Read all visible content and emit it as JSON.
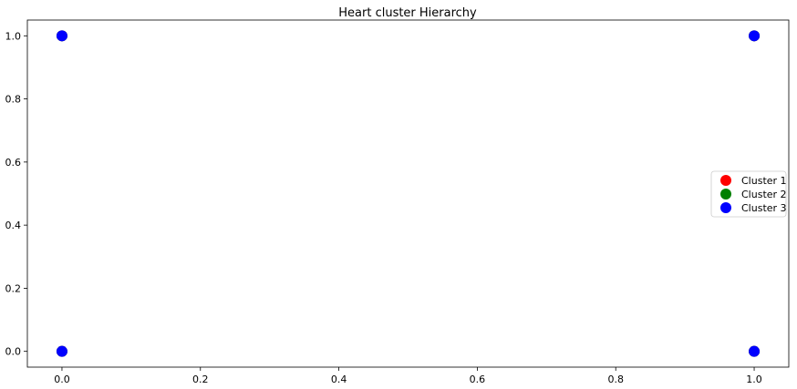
{
  "chart_data": {
    "type": "scatter",
    "title": "Heart cluster Hierarchy",
    "xlabel": "",
    "ylabel": "",
    "xlim": [
      -0.05,
      1.05
    ],
    "ylim": [
      -0.05,
      1.05
    ],
    "xticks": [
      0.0,
      0.2,
      0.4,
      0.6,
      0.8,
      1.0
    ],
    "yticks": [
      0.0,
      0.2,
      0.4,
      0.6,
      0.8,
      1.0
    ],
    "xtick_labels": [
      "0.0",
      "0.2",
      "0.4",
      "0.6",
      "0.8",
      "1.0"
    ],
    "ytick_labels": [
      "0.0",
      "0.2",
      "0.4",
      "0.6",
      "0.8",
      "1.0"
    ],
    "grid": false,
    "legend_position": "center-right",
    "series": [
      {
        "name": "Cluster 1",
        "color": "#ff0000",
        "points": [
          [
            0,
            0
          ],
          [
            0,
            1
          ],
          [
            1,
            0
          ],
          [
            1,
            1
          ]
        ]
      },
      {
        "name": "Cluster 2",
        "color": "#008000",
        "points": [
          [
            0,
            0
          ],
          [
            0,
            1
          ],
          [
            1,
            0
          ],
          [
            1,
            1
          ]
        ]
      },
      {
        "name": "Cluster 3",
        "color": "#0000ff",
        "points": [
          [
            0,
            0
          ],
          [
            0,
            1
          ],
          [
            1,
            0
          ],
          [
            1,
            1
          ]
        ]
      }
    ]
  }
}
